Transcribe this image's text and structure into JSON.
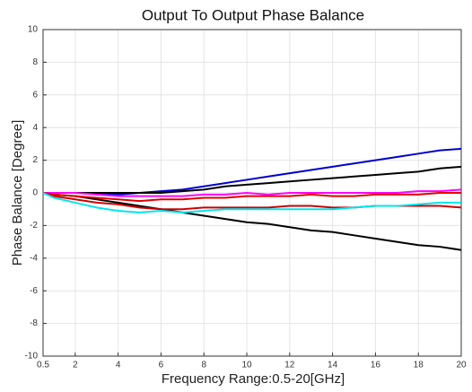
{
  "chart_data": {
    "type": "line",
    "title": "Output To Output Phase Balance",
    "x_label": "Frequency Range:0.5-20[GHz]",
    "y_label": "Phase Balance [Degree]",
    "x": [
      0.5,
      1,
      2,
      3,
      4,
      5,
      6,
      7,
      8,
      9,
      10,
      11,
      12,
      13,
      14,
      15,
      16,
      17,
      18,
      19,
      20
    ],
    "series": [
      {
        "color": "#0000cc",
        "values": [
          0,
          0,
          0,
          0,
          -0.1,
          0,
          0.1,
          0.2,
          0.4,
          0.6,
          0.8,
          1.0,
          1.2,
          1.4,
          1.6,
          1.8,
          2.0,
          2.2,
          2.4,
          2.6,
          2.7
        ]
      },
      {
        "color": "#000000",
        "values": [
          0,
          0,
          0,
          0,
          0,
          0,
          0,
          0.1,
          0.2,
          0.4,
          0.5,
          0.6,
          0.7,
          0.8,
          0.9,
          1.0,
          1.1,
          1.2,
          1.3,
          1.5,
          1.6
        ]
      },
      {
        "color": "#000000",
        "values": [
          0,
          -0.1,
          -0.2,
          -0.4,
          -0.6,
          -0.8,
          -1.0,
          -1.2,
          -1.4,
          -1.6,
          -1.8,
          -1.9,
          -2.1,
          -2.3,
          -2.4,
          -2.6,
          -2.8,
          -3.0,
          -3.2,
          -3.3,
          -3.5
        ]
      },
      {
        "color": "#ff00ff",
        "values": [
          0,
          0,
          0,
          -0.1,
          -0.2,
          -0.2,
          -0.2,
          -0.2,
          -0.1,
          -0.1,
          0,
          -0.1,
          0,
          0,
          0,
          0,
          0,
          0,
          0.1,
          0.1,
          0.2
        ]
      },
      {
        "color": "#e00000",
        "values": [
          0,
          -0.1,
          -0.2,
          -0.3,
          -0.4,
          -0.5,
          -0.4,
          -0.4,
          -0.3,
          -0.3,
          -0.2,
          -0.2,
          -0.2,
          -0.1,
          -0.2,
          -0.2,
          -0.1,
          -0.1,
          -0.1,
          0,
          0
        ]
      },
      {
        "color": "#cc0000",
        "values": [
          0,
          -0.2,
          -0.4,
          -0.6,
          -0.7,
          -0.9,
          -1.0,
          -1.0,
          -0.9,
          -0.9,
          -0.9,
          -0.9,
          -0.8,
          -0.8,
          -0.9,
          -0.9,
          -0.8,
          -0.8,
          -0.8,
          -0.8,
          -0.9
        ]
      },
      {
        "color": "#00e5ee",
        "values": [
          0,
          -0.3,
          -0.6,
          -0.9,
          -1.1,
          -1.2,
          -1.1,
          -1.2,
          -1.1,
          -1.0,
          -1.0,
          -1.0,
          -1.0,
          -1.0,
          -1.0,
          -0.9,
          -0.8,
          -0.8,
          -0.7,
          -0.6,
          -0.6
        ]
      }
    ],
    "xlim": [
      0.5,
      20
    ],
    "xticks": [
      0.5,
      2,
      4,
      6,
      8,
      10,
      12,
      14,
      16,
      18,
      20
    ],
    "ylim": [
      -10,
      10
    ],
    "yticks": [
      -10,
      -8,
      -6,
      -4,
      -2,
      0,
      2,
      4,
      6,
      8,
      10
    ],
    "grid": true
  }
}
